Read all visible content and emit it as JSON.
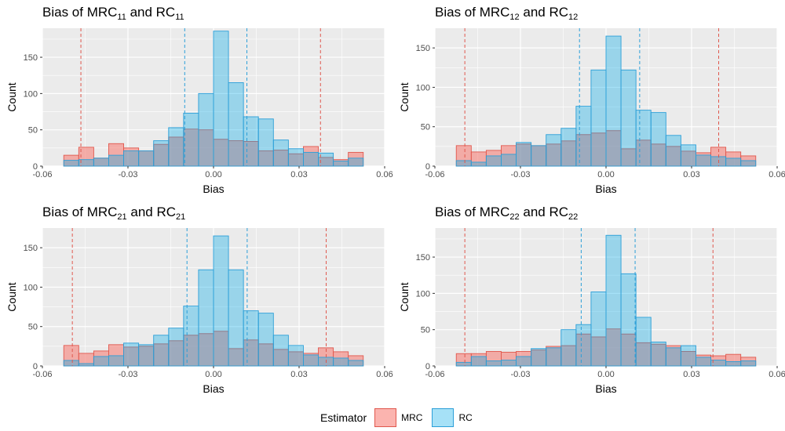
{
  "colors": {
    "MRC_fill": "#F8766D",
    "MRC_line": "#E0584E",
    "RC_fill": "#00A9E8",
    "RC_line": "#2C9FD8",
    "panel_bg": "#EBEBEB",
    "grid": "#FFFFFF"
  },
  "legend": {
    "title": "Estimator",
    "items": [
      {
        "label": "MRC",
        "color": "#F8766D"
      },
      {
        "label": "RC",
        "color": "#00A9E8"
      }
    ]
  },
  "chart_data": [
    {
      "type": "histogram",
      "title": {
        "main": "Bias of MRC",
        "sub1": "11",
        "mid": " and RC",
        "sub2": "11"
      },
      "xlabel": "Bias",
      "ylabel": "Count",
      "xlim": [
        -0.06,
        0.06
      ],
      "ylim": [
        0,
        190
      ],
      "xticks": [
        -0.06,
        -0.03,
        0.0,
        0.03,
        0.06
      ],
      "xtick_labels": [
        "-0.06",
        "-0.03",
        "0.00",
        "0.03",
        "0.06"
      ],
      "yticks": [
        0,
        50,
        100,
        150
      ],
      "bin_start": -0.0525,
      "bin_width": 0.00525,
      "series": [
        {
          "name": "MRC",
          "values": [
            15,
            26,
            11,
            31,
            25,
            21,
            30,
            40,
            51,
            50,
            37,
            35,
            34,
            21,
            22,
            17,
            27,
            12,
            9,
            19
          ],
          "vlines": [
            -0.0465,
            0.0375
          ]
        },
        {
          "name": "RC",
          "values": [
            8,
            9,
            11,
            15,
            21,
            21,
            35,
            53,
            73,
            100,
            186,
            115,
            68,
            65,
            36,
            24,
            19,
            18,
            7,
            11
          ],
          "vlines": [
            -0.0101,
            0.0117
          ]
        }
      ]
    },
    {
      "type": "histogram",
      "title": {
        "main": "Bias of MRC",
        "sub1": "12",
        "mid": " and RC",
        "sub2": "12"
      },
      "xlabel": "Bias",
      "ylabel": "Count",
      "xlim": [
        -0.06,
        0.06
      ],
      "ylim": [
        0,
        175
      ],
      "xticks": [
        -0.06,
        -0.03,
        0.0,
        0.03,
        0.06
      ],
      "xtick_labels": [
        "-0.06",
        "-0.03",
        "0.00",
        "0.03",
        "0.06"
      ],
      "yticks": [
        0,
        50,
        100,
        150
      ],
      "bin_start": -0.0525,
      "bin_width": 0.00525,
      "series": [
        {
          "name": "MRC",
          "values": [
            26,
            18,
            20,
            26,
            28,
            26,
            28,
            32,
            40,
            42,
            45,
            22,
            33,
            28,
            25,
            19,
            17,
            24,
            18,
            13
          ],
          "vlines": [
            -0.0495,
            0.0395
          ]
        },
        {
          "name": "RC",
          "values": [
            7,
            5,
            13,
            15,
            30,
            26,
            40,
            48,
            76,
            122,
            165,
            122,
            71,
            68,
            39,
            27,
            14,
            12,
            10,
            7
          ],
          "vlines": [
            -0.0093,
            0.0118
          ]
        }
      ]
    },
    {
      "type": "histogram",
      "title": {
        "main": "Bias of MRC",
        "sub1": "21",
        "mid": " and RC",
        "sub2": "21"
      },
      "xlabel": "Bias",
      "ylabel": "Count",
      "xlim": [
        -0.06,
        0.06
      ],
      "ylim": [
        0,
        175
      ],
      "xticks": [
        -0.06,
        -0.03,
        0.0,
        0.03,
        0.06
      ],
      "xtick_labels": [
        "-0.06",
        "-0.03",
        "0.00",
        "0.03",
        "0.06"
      ],
      "yticks": [
        0,
        50,
        100,
        150
      ],
      "bin_start": -0.0525,
      "bin_width": 0.00525,
      "series": [
        {
          "name": "MRC",
          "values": [
            26,
            16,
            19,
            27,
            24,
            25,
            28,
            32,
            39,
            41,
            44,
            22,
            33,
            28,
            21,
            18,
            16,
            23,
            18,
            13
          ],
          "vlines": [
            -0.0495,
            0.0395
          ]
        },
        {
          "name": "RC",
          "values": [
            7,
            3,
            12,
            13,
            29,
            27,
            39,
            48,
            76,
            122,
            165,
            122,
            70,
            67,
            39,
            26,
            14,
            11,
            10,
            7
          ],
          "vlines": [
            -0.0093,
            0.0118
          ]
        }
      ]
    },
    {
      "type": "histogram",
      "title": {
        "main": "Bias of MRC",
        "sub1": "22",
        "mid": " and RC",
        "sub2": "22"
      },
      "xlabel": "Bias",
      "ylabel": "Count",
      "xlim": [
        -0.06,
        0.06
      ],
      "ylim": [
        0,
        190
      ],
      "xticks": [
        -0.06,
        -0.03,
        0.0,
        0.03,
        0.06
      ],
      "xtick_labels": [
        "-0.06",
        "-0.03",
        "0.00",
        "0.03",
        "0.06"
      ],
      "yticks": [
        0,
        50,
        100,
        150
      ],
      "bin_start": -0.0525,
      "bin_width": 0.00525,
      "series": [
        {
          "name": "MRC",
          "values": [
            17,
            17,
            20,
            19,
            20,
            22,
            27,
            28,
            44,
            40,
            51,
            44,
            32,
            30,
            28,
            20,
            15,
            14,
            16,
            12
          ],
          "vlines": [
            -0.0495,
            0.0375
          ]
        },
        {
          "name": "RC",
          "values": [
            5,
            13,
            7,
            8,
            13,
            24,
            25,
            50,
            57,
            102,
            180,
            127,
            67,
            33,
            25,
            28,
            12,
            8,
            6,
            7
          ],
          "vlines": [
            -0.0087,
            0.0102
          ]
        }
      ]
    }
  ]
}
